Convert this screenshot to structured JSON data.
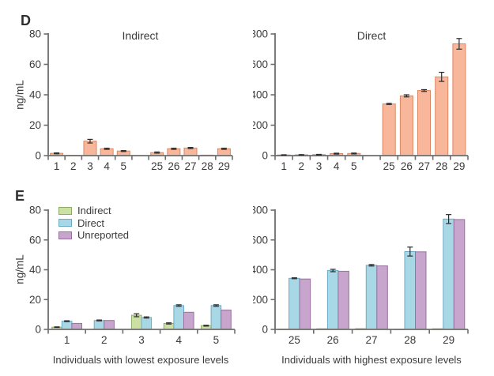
{
  "panels": {
    "d": "D",
    "e": "E"
  },
  "ylabel": "ng/mL",
  "axis_titles": {
    "lowest": "Individuals with lowest exposure levels",
    "highest": "Individuals with highest exposure levels"
  },
  "legend": {
    "items": [
      {
        "label": "Indirect",
        "fill": "#cde0a4",
        "stroke": "#8eac67"
      },
      {
        "label": "Direct",
        "fill": "#a8d7e5",
        "stroke": "#6bacc6"
      },
      {
        "label": "Unreported",
        "fill": "#c7a5cc",
        "stroke": "#99709f"
      }
    ]
  },
  "colors": {
    "salmon_fill": "#f8b79b",
    "salmon_stroke": "#db8662",
    "axis": "#6e6e6e",
    "error_bar": "#2b2b2b",
    "text": "#3b3b3b"
  },
  "chart_data": [
    {
      "id": "d-indirect",
      "type": "bar",
      "title": "Indirect",
      "ylabel": "ng/mL",
      "ylim": [
        0,
        80
      ],
      "yticks": [
        0,
        20,
        40,
        60,
        80
      ],
      "categories": [
        "1",
        "2",
        "3",
        "4",
        "5",
        "25",
        "26",
        "27",
        "28",
        "29"
      ],
      "gap_after_index": 4,
      "series": [
        {
          "name": "Indirect",
          "fill": "#f8b79b",
          "stroke": "#db8662",
          "values": [
            1.5,
            0.2,
            9.5,
            4.5,
            3,
            2,
            4.5,
            5,
            0.3,
            4.5
          ],
          "errors": [
            0.3,
            0,
            1.2,
            0.4,
            0.3,
            0.4,
            0.4,
            0.4,
            0,
            0.4
          ]
        }
      ]
    },
    {
      "id": "d-direct",
      "type": "bar",
      "title": "Direct",
      "ylabel": "",
      "ylim": [
        0,
        800
      ],
      "yticks": [
        0,
        200,
        400,
        600,
        800
      ],
      "categories": [
        "1",
        "2",
        "3",
        "4",
        "5",
        "25",
        "26",
        "27",
        "28",
        "29"
      ],
      "gap_after_index": 4,
      "series": [
        {
          "name": "Direct",
          "fill": "#f8b79b",
          "stroke": "#db8662",
          "values": [
            4,
            5,
            6,
            13,
            14,
            340,
            393,
            428,
            518,
            735
          ],
          "errors": [
            1.5,
            1.5,
            2,
            3,
            3,
            4,
            7,
            6,
            30,
            35
          ]
        }
      ]
    },
    {
      "id": "e-lowest",
      "type": "bar",
      "title": "",
      "xlabel": "Individuals with lowest exposure levels",
      "ylabel": "ng/mL",
      "ylim": [
        0,
        80
      ],
      "yticks": [
        0,
        20,
        40,
        60,
        80
      ],
      "categories": [
        "1",
        "2",
        "3",
        "4",
        "5"
      ],
      "series": [
        {
          "name": "Indirect",
          "fill": "#cde0a4",
          "stroke": "#8eac67",
          "values": [
            1.5,
            0,
            9.5,
            4,
            2.5
          ],
          "errors": [
            0.2,
            0,
            1,
            0.4,
            0.3
          ]
        },
        {
          "name": "Direct",
          "fill": "#a8d7e5",
          "stroke": "#6bacc6",
          "values": [
            5.5,
            6,
            8,
            16,
            16
          ],
          "errors": [
            0.3,
            0.3,
            0.4,
            0.5,
            0.5
          ]
        },
        {
          "name": "Unreported",
          "fill": "#c7a5cc",
          "stroke": "#99709f",
          "values": [
            4,
            6,
            0,
            11.5,
            13
          ],
          "errors": [
            0,
            0,
            0,
            0,
            0
          ]
        }
      ]
    },
    {
      "id": "e-highest",
      "type": "bar",
      "title": "",
      "xlabel": "Individuals with highest exposure levels",
      "ylabel": "",
      "ylim": [
        0,
        800
      ],
      "yticks": [
        0,
        200,
        400,
        600,
        800
      ],
      "categories": [
        "25",
        "26",
        "27",
        "28",
        "29"
      ],
      "series": [
        {
          "name": "Indirect",
          "fill": "#cde0a4",
          "stroke": "#8eac67",
          "values": [
            2,
            4.5,
            5,
            0.5,
            4.5
          ],
          "errors": [
            0,
            0,
            0,
            0,
            0
          ]
        },
        {
          "name": "Direct",
          "fill": "#a8d7e5",
          "stroke": "#6bacc6",
          "values": [
            343,
            395,
            430,
            522,
            740
          ],
          "errors": [
            3,
            8,
            5,
            30,
            30
          ]
        },
        {
          "name": "Unreported",
          "fill": "#c7a5cc",
          "stroke": "#99709f",
          "values": [
            338,
            390,
            426,
            520,
            737
          ],
          "errors": [
            0,
            0,
            0,
            0,
            0
          ]
        }
      ]
    }
  ]
}
